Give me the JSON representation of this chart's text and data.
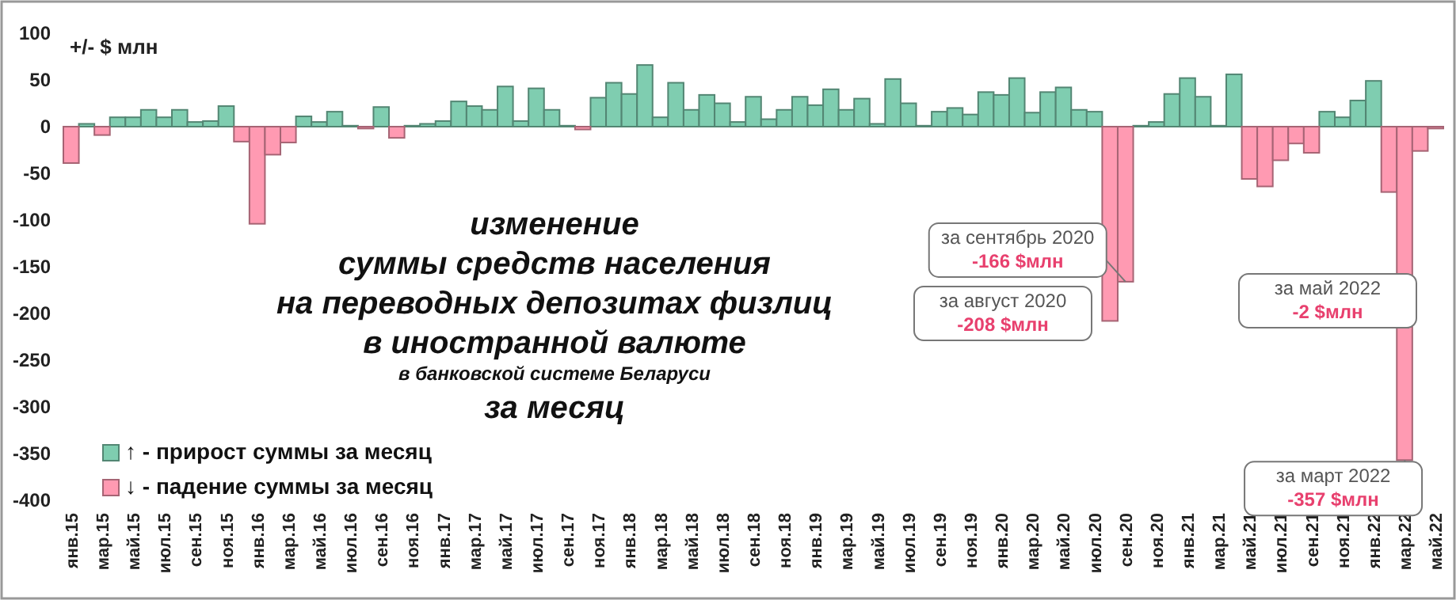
{
  "chart_data": {
    "type": "bar",
    "title": "изменение\nсуммы средств населения\nна переводных депозитах физлиц\nв иностранной валюте",
    "subtitle": "в банковской системе Беларуси\nза месяц",
    "ylabel": "+/- $ млн",
    "categories": [
      "янв.15",
      null,
      "мар.15",
      null,
      "май.15",
      null,
      "июл.15",
      null,
      "сен.15",
      null,
      "ноя.15",
      null,
      "янв.16",
      null,
      "мар.16",
      null,
      "май.16",
      null,
      "июл.16",
      null,
      "сен.16",
      null,
      "ноя.16",
      null,
      "янв.17",
      null,
      "мар.17",
      null,
      "май.17",
      null,
      "июл.17",
      null,
      "сен.17",
      null,
      "ноя.17",
      null,
      "янв.18",
      null,
      "мар.18",
      null,
      "май.18",
      null,
      "июл.18",
      null,
      "сен.18",
      null,
      "ноя.18",
      null,
      "янв.19",
      null,
      "мар.19",
      null,
      "май.19",
      null,
      "июл.19",
      null,
      "сен.19",
      null,
      "ноя.19",
      null,
      "янв.20",
      null,
      "мар.20",
      null,
      "май.20",
      null,
      "июл.20",
      null,
      "сен.20",
      null,
      "ноя.20",
      null,
      "янв.21",
      null,
      "мар.21",
      null,
      "май.21",
      null,
      "июл.21",
      null,
      "сен.21",
      null,
      "ноя.21",
      null,
      "янв.22",
      null,
      "мар.22",
      null,
      "май.22"
    ],
    "series": [
      {
        "name": "↑ - прирост суммы за месяц",
        "color": "#7fcdb0",
        "values": [
          null,
          3,
          null,
          10,
          10,
          18,
          10,
          18,
          5,
          6,
          22,
          null,
          null,
          null,
          null,
          11,
          5,
          16,
          1,
          null,
          21,
          null,
          1,
          3,
          6,
          27,
          22,
          18,
          43,
          6,
          41,
          18,
          1,
          null,
          31,
          47,
          35,
          66,
          10,
          47,
          18,
          34,
          25,
          5,
          32,
          8,
          18,
          32,
          23,
          40,
          18,
          30,
          3,
          51,
          25,
          1,
          16,
          20,
          13,
          37,
          34,
          52,
          15,
          37,
          42,
          18,
          16,
          null,
          null,
          1,
          5,
          35,
          52,
          32,
          1,
          56,
          null,
          null,
          null,
          null,
          null,
          16,
          10,
          28,
          49,
          null,
          null,
          null,
          null
        ]
      },
      {
        "name": "↓ - падение суммы за месяц",
        "color": "#ff9ab2",
        "values": [
          -39,
          null,
          -9,
          null,
          null,
          null,
          null,
          null,
          null,
          null,
          null,
          -16,
          -104,
          -30,
          -17,
          null,
          null,
          null,
          null,
          -2,
          null,
          -12,
          null,
          null,
          null,
          null,
          null,
          null,
          null,
          null,
          null,
          null,
          null,
          -3,
          null,
          null,
          null,
          null,
          null,
          null,
          null,
          null,
          null,
          null,
          null,
          null,
          null,
          null,
          null,
          null,
          null,
          null,
          null,
          null,
          null,
          null,
          null,
          null,
          null,
          null,
          null,
          null,
          null,
          null,
          null,
          null,
          null,
          -208,
          -166,
          null,
          null,
          null,
          null,
          null,
          null,
          null,
          -56,
          -64,
          -36,
          -18,
          -28,
          null,
          null,
          null,
          null,
          -70,
          -357,
          -26,
          -2
        ]
      }
    ],
    "ylim": [
      -400,
      100
    ],
    "yticks": [
      100,
      50,
      0,
      -50,
      -100,
      -150,
      -200,
      -250,
      -300,
      -350,
      -400
    ],
    "grid": false,
    "legend": "bottom left",
    "annotations": [
      {
        "text": "за сентябрь 2020\n-166 $млн",
        "x": "сен.20",
        "y": -166
      },
      "за август 2020\n-208 $млн",
      "за май 2022\n-2 $млн",
      {
        "text": "за март 2022\n-357 $млн",
        "x": "мар.22",
        "y": -357
      }
    ]
  }
}
